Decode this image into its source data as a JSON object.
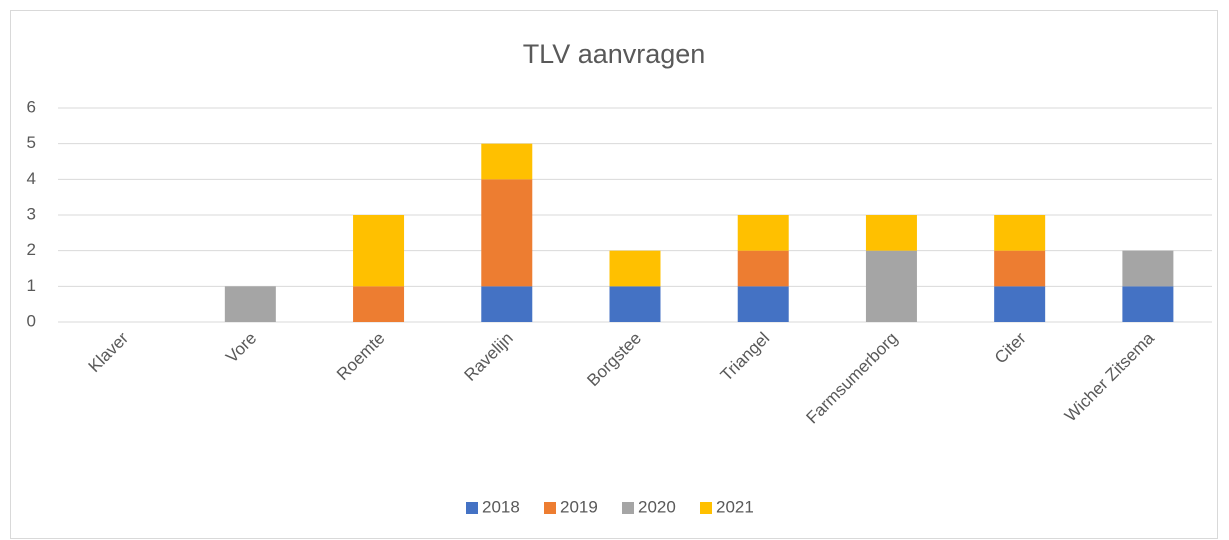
{
  "chart_data": {
    "type": "bar",
    "stacked": true,
    "title": "TLV aanvragen",
    "categories": [
      "Klaver",
      "Vore",
      "Roemte",
      "Ravelijn",
      "Borgstee",
      "Triangel",
      "Farmsumerborg",
      "Citer",
      "Wicher Zitsema"
    ],
    "series": [
      {
        "name": "2018",
        "color": "#4472c4",
        "values": [
          0,
          0,
          0,
          1,
          1,
          1,
          0,
          1,
          1
        ]
      },
      {
        "name": "2019",
        "color": "#ed7d31",
        "values": [
          0,
          0,
          1,
          3,
          0,
          1,
          0,
          1,
          0
        ]
      },
      {
        "name": "2020",
        "color": "#a5a5a5",
        "values": [
          0,
          1,
          0,
          0,
          0,
          0,
          2,
          0,
          1
        ]
      },
      {
        "name": "2021",
        "color": "#ffc000",
        "values": [
          0,
          0,
          2,
          1,
          1,
          1,
          1,
          1,
          0
        ]
      }
    ],
    "ylim": [
      0,
      6
    ],
    "yticks": [
      0,
      1,
      2,
      3,
      4,
      5,
      6
    ],
    "grid": true,
    "legend": "bottom"
  }
}
